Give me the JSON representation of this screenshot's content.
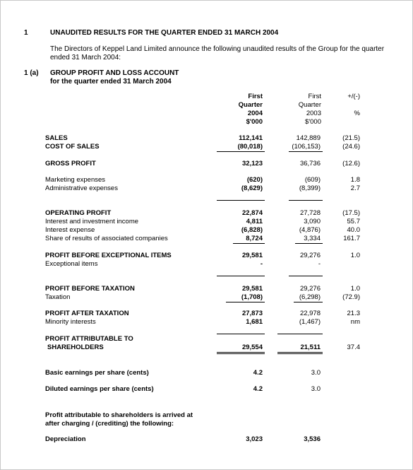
{
  "section": {
    "number": "1",
    "title": "UNAUDITED RESULTS FOR THE QUARTER ENDED 31 MARCH 2004",
    "intro_line1": "The Directors of Keppel Land Limited announce the following unaudited results of the Group for the quarter",
    "intro_line2": "ended 31 March 2004:"
  },
  "subsection": {
    "number": "1 (a)",
    "title": "GROUP PROFIT AND LOSS ACCOUNT",
    "subtitle": "for the quarter ended 31 March 2004"
  },
  "columns": {
    "c1": [
      "First",
      "Quarter",
      "2004",
      "$'000"
    ],
    "c2": [
      "First",
      "Quarter",
      "2003",
      "$'000"
    ],
    "c3": [
      "+/(-)",
      "",
      "%"
    ]
  },
  "rows": [
    {
      "label": "SALES",
      "v1": "112,141",
      "v2": "142,889",
      "v3": "(21.5)"
    },
    {
      "label": "COST OF SALES",
      "v1": "(80,018)",
      "v2": "(106,153)",
      "v3": "(24.6)"
    },
    {
      "label": "GROSS PROFIT",
      "v1": "32,123",
      "v2": "36,736",
      "v3": "(12.6)"
    },
    {
      "label": "Marketing expenses",
      "v1": "(620)",
      "v2": "(609)",
      "v3": "1.8"
    },
    {
      "label": "Administrative expenses",
      "v1": "(8,629)",
      "v2": "(8,399)",
      "v3": "2.7"
    },
    {
      "label": "OPERATING PROFIT",
      "v1": "22,874",
      "v2": "27,728",
      "v3": "(17.5)"
    },
    {
      "label": "Interest and investment income",
      "v1": "4,811",
      "v2": "3,090",
      "v3": "55.7"
    },
    {
      "label": "Interest expense",
      "v1": "(6,828)",
      "v2": "(4,876)",
      "v3": "40.0"
    },
    {
      "label": "Share of results of associated companies",
      "v1": "8,724",
      "v2": "3,334",
      "v3": "161.7"
    },
    {
      "label": "PROFIT BEFORE EXCEPTIONAL ITEMS",
      "v1": "29,581",
      "v2": "29,276",
      "v3": "1.0"
    },
    {
      "label": "Exceptional items",
      "v1": "-",
      "v2": "-",
      "v3": ""
    },
    {
      "label": "PROFIT BEFORE TAXATION",
      "v1": "29,581",
      "v2": "29,276",
      "v3": "1.0"
    },
    {
      "label": "Taxation",
      "v1": "(1,708)",
      "v2": "(6,298)",
      "v3": "(72.9)"
    },
    {
      "label": "PROFIT AFTER TAXATION",
      "v1": "27,873",
      "v2": "22,978",
      "v3": "21.3"
    },
    {
      "label": "Minority interests",
      "v1": "1,681",
      "v2": "(1,467)",
      "v3": "nm"
    },
    {
      "label": "PROFIT ATTRIBUTABLE TO",
      "label2": "SHAREHOLDERS",
      "v1": "29,554",
      "v2": "21,511",
      "v3": "37.4"
    },
    {
      "label": "Basic earnings per share (cents)",
      "v1": "4.2",
      "v2": "3.0",
      "v3": ""
    },
    {
      "label": "Diluted earnings per share (cents)",
      "v1": "4.2",
      "v2": "3.0",
      "v3": ""
    }
  ],
  "footnote": {
    "line1": "Profit attributable to shareholders is arrived at",
    "line2": "after charging / (crediting) the following:",
    "depreciation_label": "Depreciation",
    "depreciation_v1": "3,023",
    "depreciation_v2": "3,536"
  }
}
